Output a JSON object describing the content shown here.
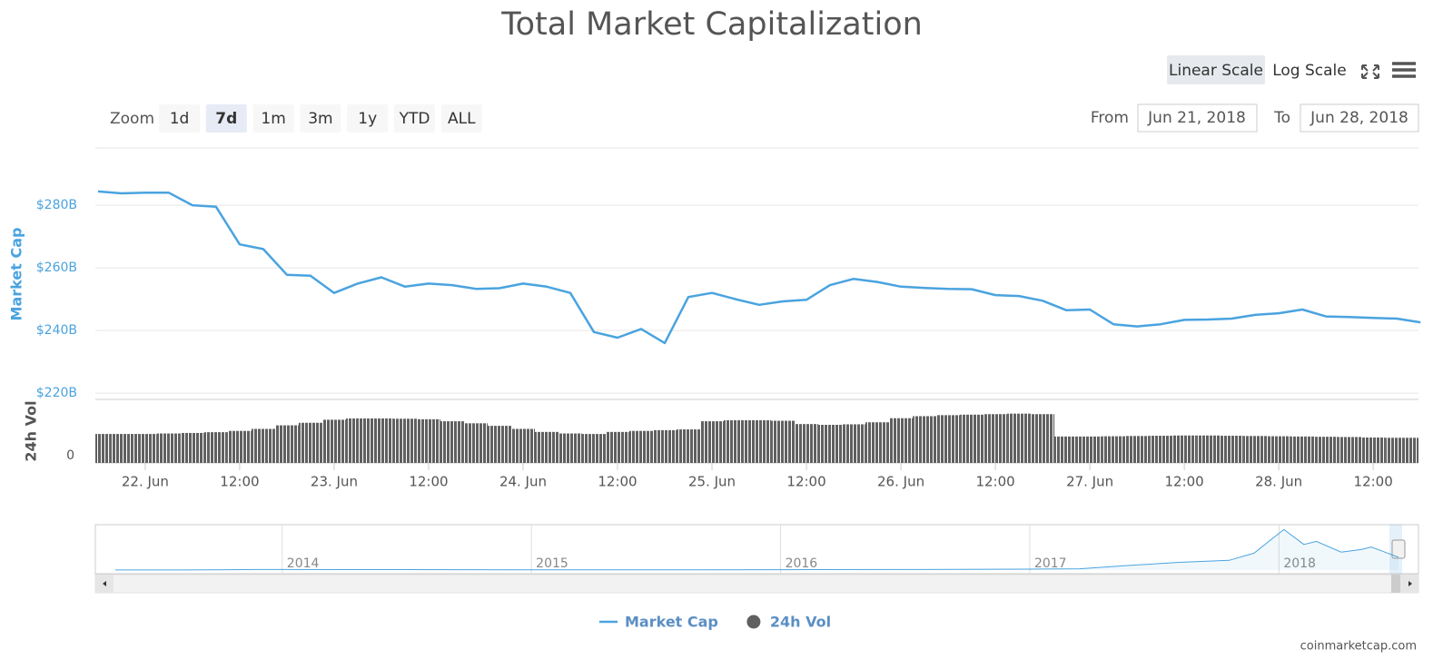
{
  "chart_data": {
    "type": "line",
    "title": "Total Market Capitalization",
    "y_label": "Market Cap",
    "y2_label": "24h Vol",
    "x": [
      "Jun 21 18:00",
      "Jun 21 21:00",
      "Jun 22 00:00",
      "Jun 22 03:00",
      "Jun 22 06:00",
      "Jun 22 09:00",
      "Jun 22 12:00",
      "Jun 22 15:00",
      "Jun 22 18:00",
      "Jun 22 21:00",
      "Jun 23 00:00",
      "Jun 23 03:00",
      "Jun 23 06:00",
      "Jun 23 09:00",
      "Jun 23 12:00",
      "Jun 23 15:00",
      "Jun 23 18:00",
      "Jun 23 21:00",
      "Jun 24 00:00",
      "Jun 24 03:00",
      "Jun 24 06:00",
      "Jun 24 09:00",
      "Jun 24 12:00",
      "Jun 24 15:00",
      "Jun 24 18:00",
      "Jun 24 21:00",
      "Jun 25 00:00",
      "Jun 25 03:00",
      "Jun 25 06:00",
      "Jun 25 09:00",
      "Jun 25 12:00",
      "Jun 25 15:00",
      "Jun 25 18:00",
      "Jun 25 21:00",
      "Jun 26 00:00",
      "Jun 26 03:00",
      "Jun 26 06:00",
      "Jun 26 09:00",
      "Jun 26 12:00",
      "Jun 26 15:00",
      "Jun 26 18:00",
      "Jun 26 21:00",
      "Jun 27 00:00",
      "Jun 27 03:00",
      "Jun 27 06:00",
      "Jun 27 09:00",
      "Jun 27 12:00",
      "Jun 27 15:00",
      "Jun 27 18:00",
      "Jun 27 21:00",
      "Jun 28 00:00",
      "Jun 28 03:00",
      "Jun 28 06:00",
      "Jun 28 09:00",
      "Jun 28 12:00",
      "Jun 28 15:00",
      "Jun 28 18:00"
    ],
    "series": [
      {
        "name": "Market Cap",
        "color": "#4aa3df",
        "values": [
          284.4,
          283.8,
          284,
          284,
          280,
          279.5,
          267.5,
          266,
          257.8,
          257.5,
          252,
          255,
          257,
          254,
          255,
          254.5,
          253.3,
          253.5,
          255,
          254,
          252,
          239.5,
          237.7,
          240.5,
          236,
          250.7,
          252,
          250,
          248.2,
          249.3,
          249.8,
          254.5,
          256.5,
          255.5,
          254,
          253.6,
          253.3,
          253.2,
          251.3,
          251,
          249.5,
          246.5,
          246.7,
          242,
          241.3,
          242,
          243.4,
          243.5,
          243.8,
          245,
          245.5,
          246.7,
          244.5,
          244.3,
          244,
          243.8,
          242.6
        ]
      },
      {
        "name": "24h Vol",
        "color": "#606060",
        "axis": "y2",
        "type": "column",
        "values": [
          11.4,
          11.4,
          11.4,
          11.6,
          11.8,
          12.1,
          12.6,
          13.4,
          14.8,
          15.8,
          17,
          17.5,
          17.5,
          17.4,
          17.2,
          16.4,
          15.6,
          14.6,
          13.4,
          12.2,
          11.6,
          11.4,
          12.2,
          12.6,
          12.9,
          13.2,
          16.4,
          16.8,
          16.8,
          16.6,
          15.3,
          15,
          15.2,
          16,
          17.6,
          18.4,
          18.8,
          19,
          19.2,
          19.4,
          19.2,
          10.4,
          10.4,
          10.5,
          10.6,
          10.7,
          10.8,
          10.8,
          10.7,
          10.6,
          10.5,
          10.4,
          10.3,
          10.2,
          10,
          9.9,
          9.9
        ]
      }
    ],
    "xlim": [
      "Jun 21 17:40",
      "Jun 28 17:45"
    ],
    "xticks": [
      {
        "value": "Jun 22 00:00",
        "label": "22. Jun"
      },
      {
        "value": "Jun 22 12:00",
        "label": "12:00"
      },
      {
        "value": "Jun 23 00:00",
        "label": "23. Jun"
      },
      {
        "value": "Jun 23 12:00",
        "label": "12:00"
      },
      {
        "value": "Jun 24 00:00",
        "label": "24. Jun"
      },
      {
        "value": "Jun 24 12:00",
        "label": "12:00"
      },
      {
        "value": "Jun 25 00:00",
        "label": "25. Jun"
      },
      {
        "value": "Jun 25 12:00",
        "label": "12:00"
      },
      {
        "value": "Jun 26 00:00",
        "label": "26. Jun"
      },
      {
        "value": "Jun 26 12:00",
        "label": "12:00"
      },
      {
        "value": "Jun 27 00:00",
        "label": "27. Jun"
      },
      {
        "value": "Jun 27 12:00",
        "label": "12:00"
      },
      {
        "value": "Jun 28 00:00",
        "label": "28. Jun"
      },
      {
        "value": "Jun 28 12:00",
        "label": "12:00"
      }
    ],
    "ylim": [
      218,
      298
    ],
    "yticks": [
      {
        "value": 220,
        "label": "$220B"
      },
      {
        "value": 240,
        "label": "$240B"
      },
      {
        "value": 260,
        "label": "$260B"
      },
      {
        "value": 280,
        "label": "$280B"
      }
    ],
    "y2lim": [
      0,
      25
    ],
    "y2ticks": [
      0
    ],
    "grid": true,
    "legend": "bottom",
    "navigator": {
      "xlim": [
        2013.25,
        2018.56
      ],
      "ylim": [
        0,
        850
      ],
      "xticks": [
        2014,
        2015,
        2016,
        2017,
        2018
      ],
      "x": [
        2013.33,
        2013.6,
        2013.9,
        2014.0,
        2014.5,
        2015.0,
        2015.5,
        2016.0,
        2016.5,
        2017.0,
        2017.2,
        2017.4,
        2017.6,
        2017.8,
        2017.9,
        2017.97,
        2018.02,
        2018.1,
        2018.15,
        2018.25,
        2018.33,
        2018.37,
        2018.42,
        2018.48
      ],
      "values": [
        1.5,
        1.5,
        10,
        10,
        8,
        5,
        4,
        7,
        10,
        18,
        25,
        90,
        150,
        190,
        330,
        600,
        790,
        500,
        560,
        350,
        400,
        450,
        360,
        250
      ]
    }
  },
  "range_selector": {
    "label": "Zoom",
    "buttons": [
      "1d",
      "7d",
      "1m",
      "3m",
      "1y",
      "YTD",
      "ALL"
    ],
    "selected": 1
  },
  "scale_buttons": {
    "buttons": [
      "Linear Scale",
      "Log Scale"
    ],
    "selected": 0
  },
  "date_range": {
    "from_label": "From",
    "from": "Jun 21, 2018",
    "to_label": "To",
    "to": "Jun 28, 2018"
  },
  "credit": "coinmarketcap.com"
}
